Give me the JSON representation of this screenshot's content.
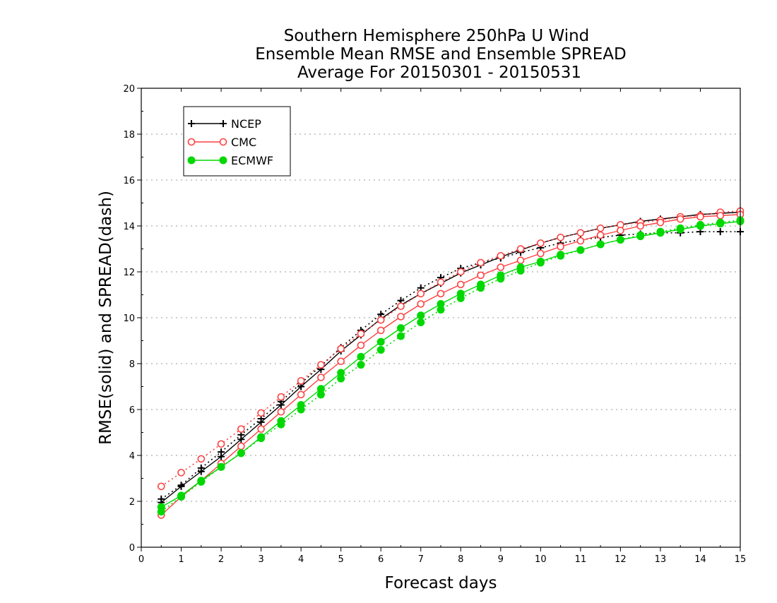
{
  "chart_data": {
    "type": "line",
    "title": [
      "Southern Hemisphere 250hPa U Wind",
      "Ensemble Mean RMSE and Ensemble SPREAD",
      "Average For 20150301 - 20150531"
    ],
    "xlabel": "Forecast days",
    "ylabel": "RMSE(solid) and SPREAD(dash)",
    "xlim": [
      0,
      15
    ],
    "ylim": [
      0,
      20
    ],
    "xticks": [
      "0",
      "1",
      "2",
      "3",
      "4",
      "5",
      "6",
      "7",
      "8",
      "9",
      "10",
      "11",
      "12",
      "13",
      "14",
      "15"
    ],
    "yticks": [
      "0",
      "2",
      "4",
      "6",
      "8",
      "10",
      "12",
      "14",
      "16",
      "18",
      "20"
    ],
    "grid": "horizontal-dotted",
    "legend_position": "top-left",
    "x": [
      0.5,
      1,
      1.5,
      2,
      2.5,
      3,
      3.5,
      4,
      4.5,
      5,
      5.5,
      6,
      6.5,
      7,
      7.5,
      8,
      8.5,
      9,
      9.5,
      10,
      10.5,
      11,
      11.5,
      12,
      12.5,
      13,
      13.5,
      14,
      14.5,
      15
    ],
    "series": [
      {
        "name": "NCEP",
        "color": "#000000",
        "marker": "plus",
        "rmse": [
          1.95,
          2.65,
          3.3,
          3.95,
          4.7,
          5.45,
          6.2,
          7.0,
          7.75,
          8.55,
          9.25,
          9.95,
          10.55,
          11.05,
          11.5,
          11.95,
          12.3,
          12.65,
          12.95,
          13.25,
          13.5,
          13.7,
          13.9,
          14.05,
          14.2,
          14.3,
          14.4,
          14.5,
          14.55,
          14.6
        ],
        "spread": [
          2.1,
          2.7,
          3.45,
          4.15,
          4.9,
          5.6,
          6.35,
          7.15,
          7.9,
          8.7,
          9.45,
          10.15,
          10.75,
          11.3,
          11.75,
          12.15,
          12.4,
          12.6,
          12.85,
          13.05,
          13.25,
          13.4,
          13.5,
          13.6,
          13.65,
          13.7,
          13.7,
          13.75,
          13.75,
          13.75
        ]
      },
      {
        "name": "CMC",
        "color": "#ff4040",
        "marker": "open-circle",
        "rmse": [
          1.4,
          2.2,
          2.9,
          3.65,
          4.4,
          5.15,
          5.9,
          6.65,
          7.4,
          8.1,
          8.8,
          9.45,
          10.05,
          10.6,
          11.05,
          11.45,
          11.85,
          12.2,
          12.5,
          12.8,
          13.1,
          13.35,
          13.6,
          13.8,
          14.0,
          14.15,
          14.3,
          14.4,
          14.45,
          14.5
        ],
        "spread": [
          2.65,
          3.25,
          3.85,
          4.5,
          5.15,
          5.85,
          6.55,
          7.25,
          7.95,
          8.65,
          9.3,
          9.9,
          10.5,
          11.05,
          11.55,
          12.0,
          12.4,
          12.7,
          13.0,
          13.25,
          13.5,
          13.7,
          13.9,
          14.05,
          14.15,
          14.25,
          14.4,
          14.45,
          14.6,
          14.65
        ]
      },
      {
        "name": "ECMWF",
        "color": "#00d800",
        "marker": "filled-circle",
        "rmse": [
          1.75,
          2.25,
          2.9,
          3.5,
          4.1,
          4.8,
          5.5,
          6.2,
          6.9,
          7.6,
          8.3,
          8.95,
          9.55,
          10.1,
          10.6,
          11.05,
          11.45,
          11.85,
          12.2,
          12.45,
          12.75,
          12.95,
          13.2,
          13.4,
          13.55,
          13.7,
          13.85,
          14.0,
          14.1,
          14.2
        ],
        "spread": [
          1.55,
          2.2,
          2.85,
          3.5,
          4.1,
          4.75,
          5.35,
          6.0,
          6.65,
          7.35,
          7.95,
          8.6,
          9.2,
          9.8,
          10.35,
          10.85,
          11.3,
          11.7,
          12.05,
          12.4,
          12.7,
          12.95,
          13.2,
          13.4,
          13.6,
          13.75,
          13.9,
          14.05,
          14.15,
          14.25
        ]
      }
    ]
  }
}
